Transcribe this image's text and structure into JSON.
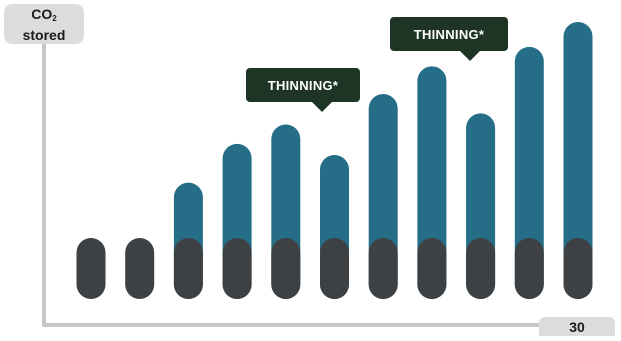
{
  "chart_data": {
    "type": "bar",
    "ylabel_main": "CO",
    "ylabel_sub": "2",
    "ylabel_line2": "stored",
    "x_tick_end": "30",
    "ylim": [
      0,
      100
    ],
    "base_value": 22,
    "values": [
      22,
      22,
      42,
      56,
      63,
      52,
      74,
      84,
      67,
      91,
      100
    ],
    "annotations": [
      {
        "text": "THINNING*",
        "bar_index": 5
      },
      {
        "text": "THINNING*",
        "bar_index": 8
      }
    ]
  },
  "colors": {
    "base": "#3e4144",
    "stored": "#266e87",
    "axis": "#c7c7c7",
    "callout": "#1e3526"
  }
}
